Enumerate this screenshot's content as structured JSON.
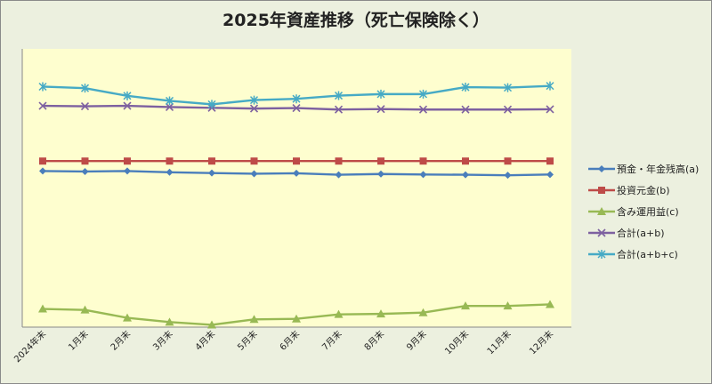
{
  "chart_data": {
    "type": "line",
    "title": "2025年資産推移（死亡保険除く）",
    "categories": [
      "2024年末",
      "1月末",
      "2月末",
      "3月末",
      "4月末",
      "5月末",
      "6月末",
      "7月末",
      "8月末",
      "9月末",
      "10月末",
      "11月末",
      "12月末"
    ],
    "series": [
      {
        "name": "預金・年金残高(a)",
        "color": "#4a7ebb",
        "marker": "diamond",
        "values": [
          0.62,
          0.618,
          0.62,
          0.615,
          0.612,
          0.609,
          0.611,
          0.605,
          0.608,
          0.606,
          0.605,
          0.603,
          0.606
        ]
      },
      {
        "name": "投資元金(b)",
        "color": "#be4b48",
        "marker": "square",
        "values": [
          0.66,
          0.66,
          0.66,
          0.66,
          0.66,
          0.66,
          0.66,
          0.66,
          0.66,
          0.66,
          0.66,
          0.66,
          0.66
        ]
      },
      {
        "name": "含み運用益(c)",
        "color": "#98b954",
        "marker": "triangle",
        "values": [
          0.066,
          0.062,
          0.03,
          0.013,
          0.002,
          0.024,
          0.026,
          0.044,
          0.046,
          0.051,
          0.078,
          0.078,
          0.084
        ]
      },
      {
        "name": "合計(a+b)",
        "color": "#7d60a0",
        "marker": "x",
        "values": [
          0.882,
          0.88,
          0.882,
          0.877,
          0.874,
          0.871,
          0.873,
          0.867,
          0.869,
          0.867,
          0.867,
          0.867,
          0.868
        ]
      },
      {
        "name": "合計(a+b+c)",
        "color": "#46aac5",
        "marker": "star",
        "values": [
          0.959,
          0.953,
          0.922,
          0.902,
          0.888,
          0.905,
          0.91,
          0.923,
          0.929,
          0.929,
          0.957,
          0.955,
          0.962
        ]
      }
    ],
    "ylim": [
      0,
      1
    ],
    "y_ticks_shown": false,
    "grid": false,
    "legend_position": "right"
  }
}
